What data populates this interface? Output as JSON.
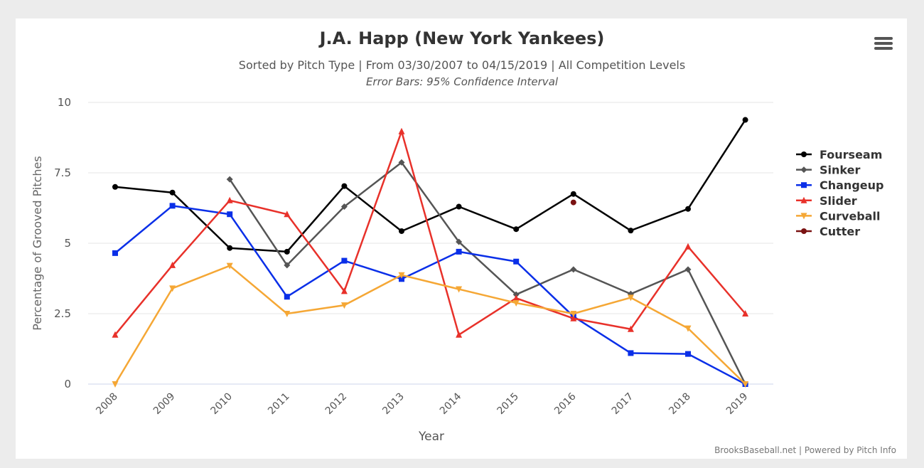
{
  "chart_data": {
    "type": "line",
    "title": "J.A. Happ (New York Yankees)",
    "subtitle": "Sorted by Pitch Type | From 03/30/2007 to 04/15/2019 | All Competition Levels",
    "subtitle2": "Error Bars: 95% Confidence Interval",
    "xlabel": "Year",
    "ylabel": "Percentage of Grooved Pitches",
    "ylim": [
      0,
      10
    ],
    "yticks": [
      0,
      2.5,
      5,
      7.5,
      10
    ],
    "ytick_labels": [
      "0",
      "2.5",
      "5",
      "7.5",
      "10"
    ],
    "categories": [
      "2008",
      "2009",
      "2010",
      "2011",
      "2012",
      "2013",
      "2014",
      "2015",
      "2016",
      "2017",
      "2018",
      "2019"
    ],
    "legend_position": "right",
    "series": [
      {
        "name": "Fourseam",
        "color": "#000000",
        "marker": "circle",
        "values": [
          7.0,
          6.8,
          4.83,
          4.7,
          7.03,
          5.43,
          6.3,
          5.5,
          6.75,
          5.45,
          6.22,
          9.38
        ]
      },
      {
        "name": "Sinker",
        "color": "#555555",
        "marker": "diamond",
        "values": [
          null,
          null,
          7.27,
          4.22,
          6.3,
          7.87,
          5.05,
          3.18,
          4.07,
          3.2,
          4.07,
          0.0
        ]
      },
      {
        "name": "Changeup",
        "color": "#0a2fe8",
        "marker": "square",
        "values": [
          4.65,
          6.33,
          6.03,
          3.1,
          4.38,
          3.73,
          4.7,
          4.35,
          2.4,
          1.1,
          1.07,
          0.0
        ]
      },
      {
        "name": "Slider",
        "color": "#e8312a",
        "marker": "triangle",
        "values": [
          1.75,
          4.22,
          6.52,
          6.03,
          3.3,
          8.97,
          1.75,
          3.05,
          2.33,
          1.95,
          4.88,
          2.5
        ]
      },
      {
        "name": "Curveball",
        "color": "#f5a735",
        "marker": "triangle-down",
        "values": [
          0.0,
          3.4,
          4.2,
          2.5,
          2.8,
          3.87,
          3.37,
          2.88,
          2.5,
          3.07,
          1.98,
          0.0
        ]
      },
      {
        "name": "Cutter",
        "color": "#7a1212",
        "marker": "circle",
        "values": [
          null,
          null,
          null,
          null,
          null,
          null,
          null,
          null,
          6.45,
          null,
          null,
          null
        ]
      }
    ]
  },
  "credits": "BrooksBaseball.net | Powered by Pitch Info",
  "menu_icon": "hamburger-menu-icon"
}
